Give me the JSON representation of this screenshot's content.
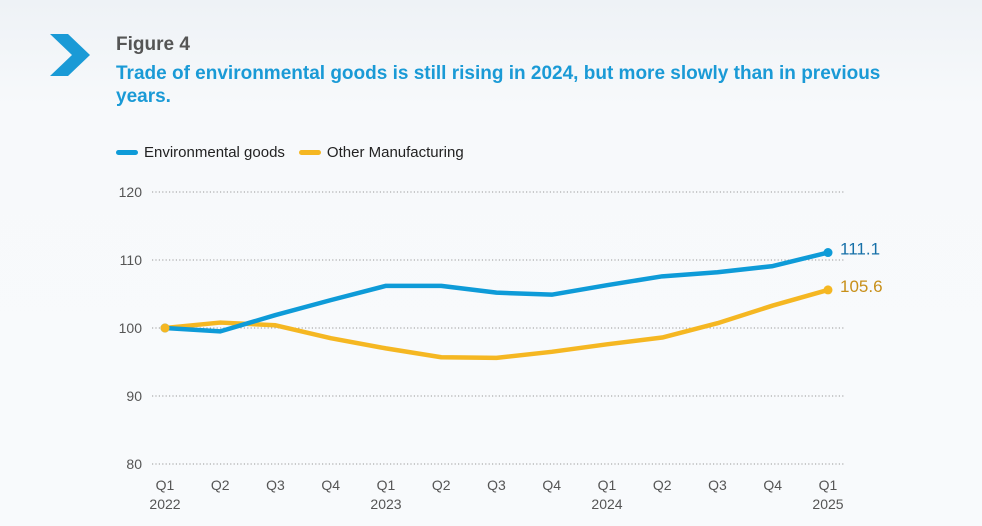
{
  "figure_label": "Figure 4",
  "title": "Trade of environmental goods is still rising in 2024, but more slowly than in previous years.",
  "chart_data": {
    "type": "line",
    "title": "Trade of environmental goods is still rising in 2024, but more slowly than in previous years.",
    "x": [
      "Q1 2022",
      "Q2 2022",
      "Q3 2022",
      "Q4 2022",
      "Q1 2023",
      "Q2 2023",
      "Q3 2023",
      "Q4 2023",
      "Q1 2024",
      "Q2 2024",
      "Q3 2024",
      "Q4 2024",
      "Q1 2025"
    ],
    "x_tick_quarters": [
      "Q1",
      "Q2",
      "Q3",
      "Q4",
      "Q1",
      "Q2",
      "Q3",
      "Q4",
      "Q1",
      "Q2",
      "Q3",
      "Q4",
      "Q1"
    ],
    "x_tick_years": [
      "2022",
      "",
      "",
      "",
      "2023",
      "",
      "",
      "",
      "2024",
      "",
      "",
      "",
      "2025"
    ],
    "y_ticks": [
      80,
      90,
      100,
      110,
      120
    ],
    "ylim": [
      80,
      120
    ],
    "grid": "horizontal dotted",
    "legend": "top-left",
    "series": [
      {
        "name": "Environmental goods",
        "color": "#0e9bd8",
        "values": [
          100,
          99.5,
          101.9,
          104.1,
          106.2,
          106.2,
          105.2,
          104.9,
          106.3,
          107.6,
          108.2,
          109.1,
          111.1
        ],
        "end_label": "111.1",
        "end_label_color": "#1670a8"
      },
      {
        "name": "Other Manufacturing",
        "color": "#f5b722",
        "values": [
          100,
          100.8,
          100.4,
          98.5,
          97.0,
          95.7,
          95.6,
          96.5,
          97.6,
          98.6,
          100.7,
          103.3,
          105.6
        ],
        "end_label": "105.6",
        "end_label_color": "#c8901a"
      }
    ]
  }
}
